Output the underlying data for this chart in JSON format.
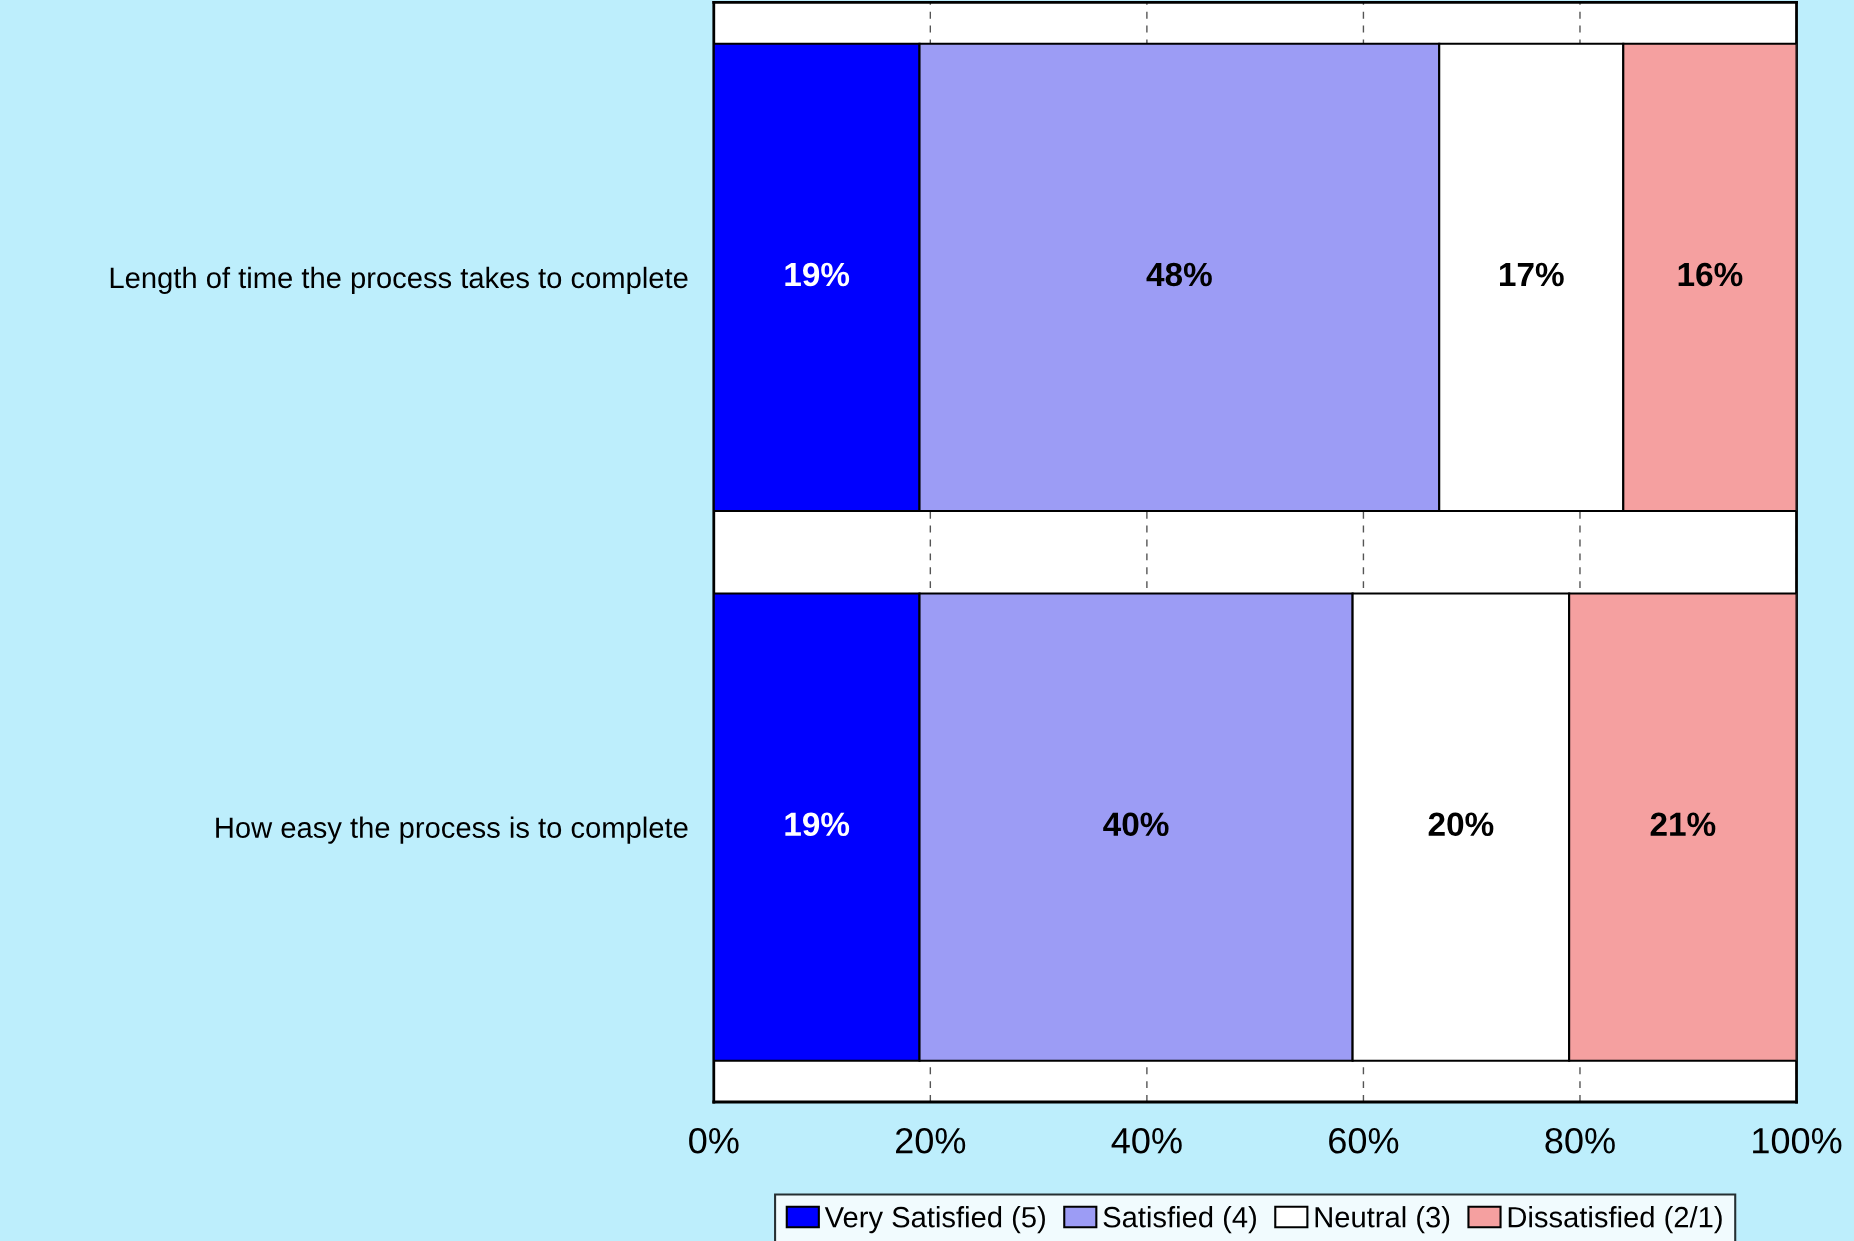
{
  "chart_data": {
    "type": "bar",
    "orientation": "horizontal",
    "stacked": true,
    "categories": [
      "Length of time the process takes to complete",
      "How easy the process is to complete"
    ],
    "series": [
      {
        "name": "Very Satisfied (5)",
        "color": "#0000ff",
        "values": [
          19,
          19
        ],
        "value_labels": [
          "19%",
          "19%"
        ]
      },
      {
        "name": "Satisfied (4)",
        "color": "#9c9cf5",
        "values": [
          48,
          40
        ],
        "value_labels": [
          "48%",
          "40%"
        ]
      },
      {
        "name": "Neutral (3)",
        "color": "#ffffff",
        "values": [
          17,
          20
        ],
        "value_labels": [
          "17%",
          "20%"
        ]
      },
      {
        "name": "Dissatisfied (2/1)",
        "color": "#f5a0a0",
        "values": [
          16,
          21
        ],
        "value_labels": [
          "16%",
          "21%"
        ]
      }
    ],
    "xlim": [
      0,
      100
    ],
    "xticks": [
      {
        "value": 0,
        "label": "0%"
      },
      {
        "value": 20,
        "label": "20%"
      },
      {
        "value": 40,
        "label": "40%"
      },
      {
        "value": 60,
        "label": "60%"
      },
      {
        "value": 80,
        "label": "80%"
      },
      {
        "value": 100,
        "label": "100%"
      }
    ],
    "grid": "x",
    "legend": "bottom"
  }
}
